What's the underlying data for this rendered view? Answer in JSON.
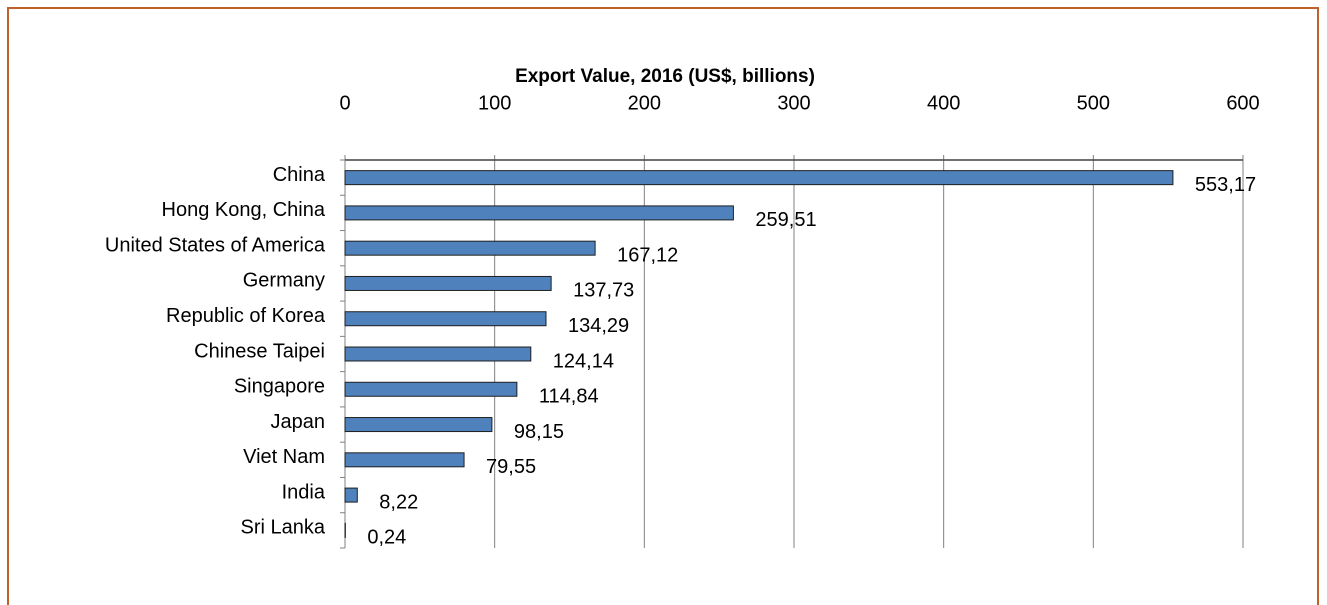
{
  "chart_data": {
    "type": "bar",
    "orientation": "horizontal",
    "title": "Export Value, 2016 (US$, billions)",
    "categories": [
      "China",
      "Hong Kong, China",
      "United States of America",
      "Germany",
      "Republic of Korea",
      "Chinese Taipei",
      "Singapore",
      "Japan",
      "Viet Nam",
      "India",
      "Sri Lanka"
    ],
    "values": [
      553.17,
      259.51,
      167.12,
      137.73,
      134.29,
      124.14,
      114.84,
      98.15,
      79.55,
      8.22,
      0.24
    ],
    "value_labels": [
      "553,17",
      "259,51",
      "167,12",
      "137,73",
      "134,29",
      "124,14",
      "114,84",
      "98,15",
      "79,55",
      "8,22",
      "0,24"
    ],
    "color": "#4f81bd",
    "xlim": [
      0,
      600
    ],
    "xticks": [
      0,
      100,
      200,
      300,
      400,
      500,
      600
    ],
    "grid": true
  }
}
